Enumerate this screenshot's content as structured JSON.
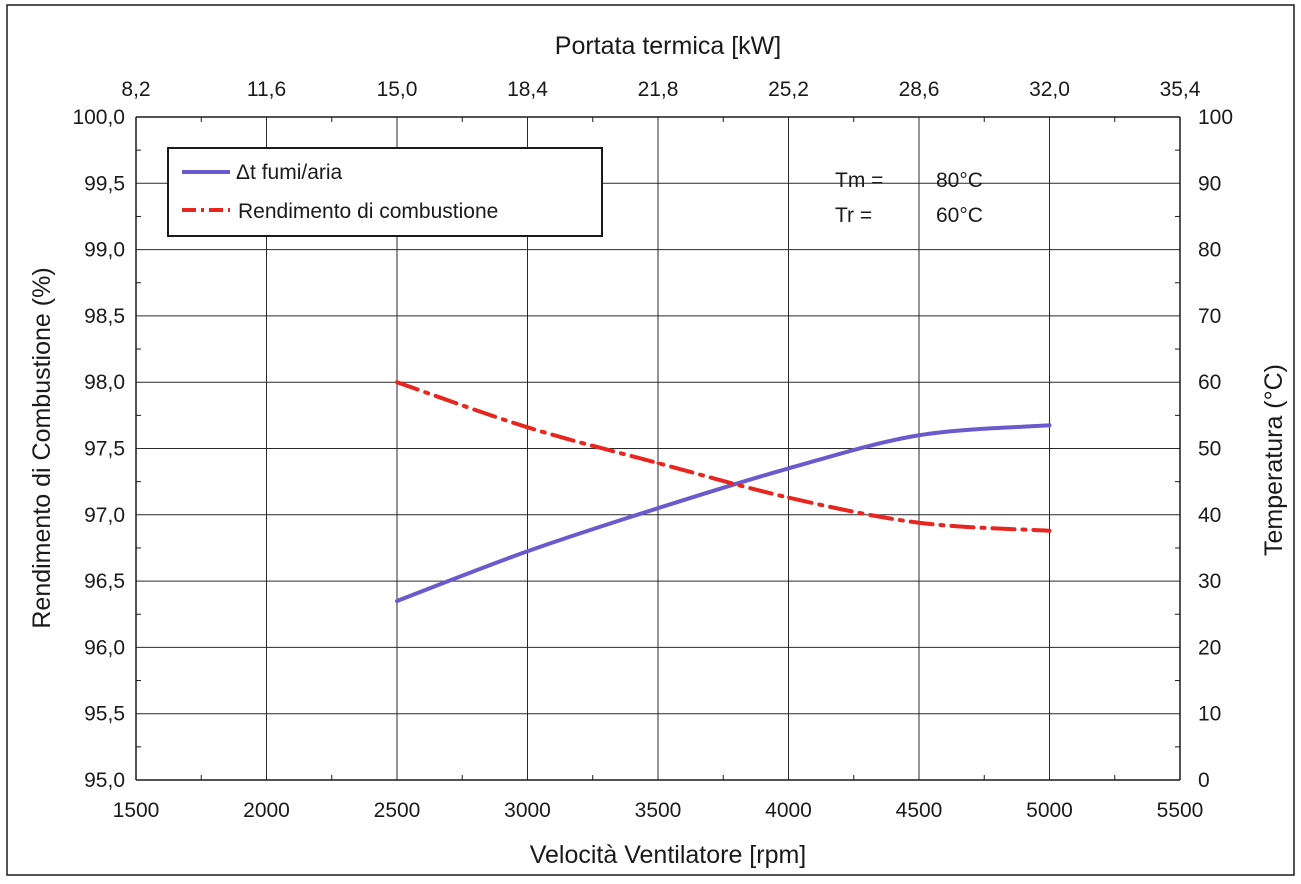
{
  "chart_data": {
    "type": "line",
    "x_bottom": {
      "title": "Velocità Ventilatore [rpm]",
      "range": [
        1500,
        5500
      ],
      "ticks": [
        1500,
        2000,
        2500,
        3000,
        3500,
        4000,
        4500,
        5000,
        5500
      ],
      "tick_labels": [
        "1500",
        "2000",
        "2500",
        "3000",
        "3500",
        "4000",
        "4500",
        "5000",
        "5500"
      ]
    },
    "x_top": {
      "title": "Portata termica [kW]",
      "range": [
        8.2,
        35.4
      ],
      "ticks": [
        8.2,
        11.6,
        15.0,
        18.4,
        21.8,
        25.2,
        28.6,
        32.0,
        35.4
      ],
      "tick_labels": [
        "8,2",
        "11,6",
        "15,0",
        "18,4",
        "21,8",
        "25,2",
        "28,6",
        "32,0",
        "35,4"
      ]
    },
    "y_left": {
      "title": "Rendimento di Combustione (%)",
      "range": [
        95.0,
        100.0
      ],
      "ticks": [
        95.0,
        95.5,
        96.0,
        96.5,
        97.0,
        97.5,
        98.0,
        98.5,
        99.0,
        99.5,
        100.0
      ],
      "tick_labels": [
        "95,0",
        "95,5",
        "96,0",
        "96,5",
        "97,0",
        "97,5",
        "98,0",
        "98,5",
        "99,0",
        "99,5",
        "100,0"
      ]
    },
    "y_right": {
      "title": "Temperatura (°C)",
      "range": [
        0,
        100
      ],
      "ticks": [
        0,
        10,
        20,
        30,
        40,
        50,
        60,
        70,
        80,
        90,
        100
      ],
      "tick_labels": [
        "0",
        "10",
        "20",
        "30",
        "40",
        "50",
        "60",
        "70",
        "80",
        "90",
        "100"
      ]
    },
    "grid": true,
    "legend_position": "top-left",
    "series": [
      {
        "name": "Δt fumi/aria",
        "axis": "right",
        "style": "solid",
        "color": "#6a5acd",
        "x": [
          2500,
          3000,
          3500,
          4000,
          4500,
          5000
        ],
        "y": [
          27.0,
          34.5,
          41.0,
          47.0,
          52.0,
          53.5
        ]
      },
      {
        "name": "Rendimento di combustione",
        "axis": "left",
        "style": "dash-dot",
        "color": "#e8261f",
        "x": [
          2500,
          3000,
          3500,
          4000,
          4500,
          5000
        ],
        "y": [
          98.0,
          97.66,
          97.39,
          97.13,
          96.94,
          96.88
        ]
      }
    ],
    "annotations": [
      {
        "label": "Tm =",
        "value": "80°C"
      },
      {
        "label": "Tr =",
        "value": "60°C"
      }
    ]
  }
}
